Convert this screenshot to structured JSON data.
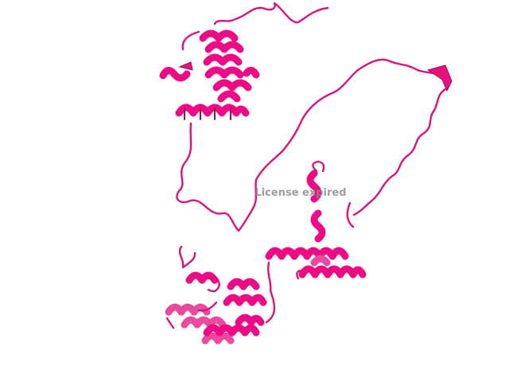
{
  "watermark": "License expired"
}
